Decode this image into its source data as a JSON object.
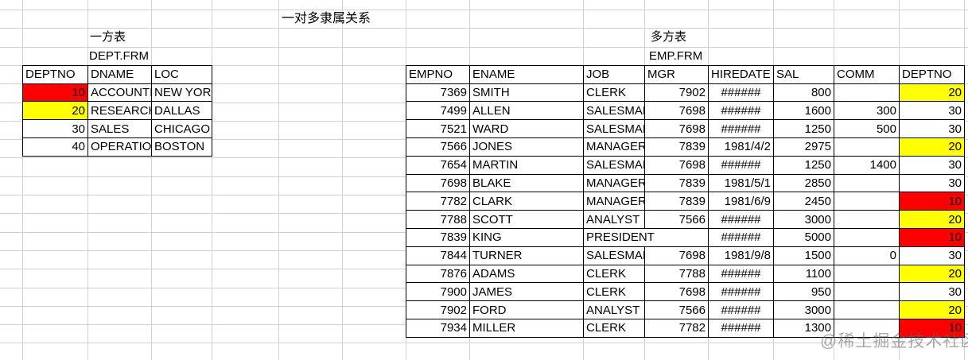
{
  "title": "一对多隶属关系",
  "watermark": "@稀土掘金技术社区",
  "colors": {
    "red": "#ff0000",
    "yellow": "#ffff00"
  },
  "dept_table": {
    "caption": "一方表",
    "file": "DEPT.FRM",
    "headers": [
      "DEPTNO",
      "DNAME",
      "LOC"
    ],
    "rows": [
      {
        "deptno": "10",
        "dname": "ACCOUNTING",
        "loc": "NEW YORK",
        "fill": "red"
      },
      {
        "deptno": "20",
        "dname": "RESEARCH",
        "loc": "DALLAS",
        "fill": "yellow"
      },
      {
        "deptno": "30",
        "dname": "SALES",
        "loc": "CHICAGO",
        "fill": ""
      },
      {
        "deptno": "40",
        "dname": "OPERATIONS",
        "loc": "BOSTON",
        "fill": ""
      }
    ]
  },
  "emp_table": {
    "caption": "多方表",
    "file": "EMP.FRM",
    "headers": [
      "EMPNO",
      "ENAME",
      "JOB",
      "MGR",
      "HIREDATE",
      "SAL",
      "COMM",
      "DEPTNO"
    ],
    "rows": [
      {
        "empno": "7369",
        "ename": "SMITH",
        "job": "CLERK",
        "mgr": "7902",
        "hiredate": "######",
        "sal": "800",
        "comm": "",
        "deptno": "20",
        "fill": "yellow"
      },
      {
        "empno": "7499",
        "ename": "ALLEN",
        "job": "SALESMAN",
        "mgr": "7698",
        "hiredate": "######",
        "sal": "1600",
        "comm": "300",
        "deptno": "30",
        "fill": ""
      },
      {
        "empno": "7521",
        "ename": "WARD",
        "job": "SALESMAN",
        "mgr": "7698",
        "hiredate": "######",
        "sal": "1250",
        "comm": "500",
        "deptno": "30",
        "fill": ""
      },
      {
        "empno": "7566",
        "ename": "JONES",
        "job": "MANAGER",
        "mgr": "7839",
        "hiredate": "1981/4/2",
        "sal": "2975",
        "comm": "",
        "deptno": "20",
        "fill": "yellow"
      },
      {
        "empno": "7654",
        "ename": "MARTIN",
        "job": "SALESMAN",
        "mgr": "7698",
        "hiredate": "######",
        "sal": "1250",
        "comm": "1400",
        "deptno": "30",
        "fill": ""
      },
      {
        "empno": "7698",
        "ename": "BLAKE",
        "job": "MANAGER",
        "mgr": "7839",
        "hiredate": "1981/5/1",
        "sal": "2850",
        "comm": "",
        "deptno": "30",
        "fill": ""
      },
      {
        "empno": "7782",
        "ename": "CLARK",
        "job": "MANAGER",
        "mgr": "7839",
        "hiredate": "1981/6/9",
        "sal": "2450",
        "comm": "",
        "deptno": "10",
        "fill": "red"
      },
      {
        "empno": "7788",
        "ename": "SCOTT",
        "job": "ANALYST",
        "mgr": "7566",
        "hiredate": "######",
        "sal": "3000",
        "comm": "",
        "deptno": "20",
        "fill": "yellow"
      },
      {
        "empno": "7839",
        "ename": "KING",
        "job": "PRESIDENT",
        "mgr": "",
        "hiredate": "######",
        "sal": "5000",
        "comm": "",
        "deptno": "10",
        "fill": "red"
      },
      {
        "empno": "7844",
        "ename": "TURNER",
        "job": "SALESMAN",
        "mgr": "7698",
        "hiredate": "1981/9/8",
        "sal": "1500",
        "comm": "0",
        "deptno": "30",
        "fill": ""
      },
      {
        "empno": "7876",
        "ename": "ADAMS",
        "job": "CLERK",
        "mgr": "7788",
        "hiredate": "######",
        "sal": "1100",
        "comm": "",
        "deptno": "20",
        "fill": "yellow"
      },
      {
        "empno": "7900",
        "ename": "JAMES",
        "job": "CLERK",
        "mgr": "7698",
        "hiredate": "######",
        "sal": "950",
        "comm": "",
        "deptno": "30",
        "fill": ""
      },
      {
        "empno": "7902",
        "ename": "FORD",
        "job": "ANALYST",
        "mgr": "7566",
        "hiredate": "######",
        "sal": "3000",
        "comm": "",
        "deptno": "20",
        "fill": "yellow"
      },
      {
        "empno": "7934",
        "ename": "MILLER",
        "job": "CLERK",
        "mgr": "7782",
        "hiredate": "######",
        "sal": "1300",
        "comm": "",
        "deptno": "10",
        "fill": "red"
      }
    ]
  }
}
